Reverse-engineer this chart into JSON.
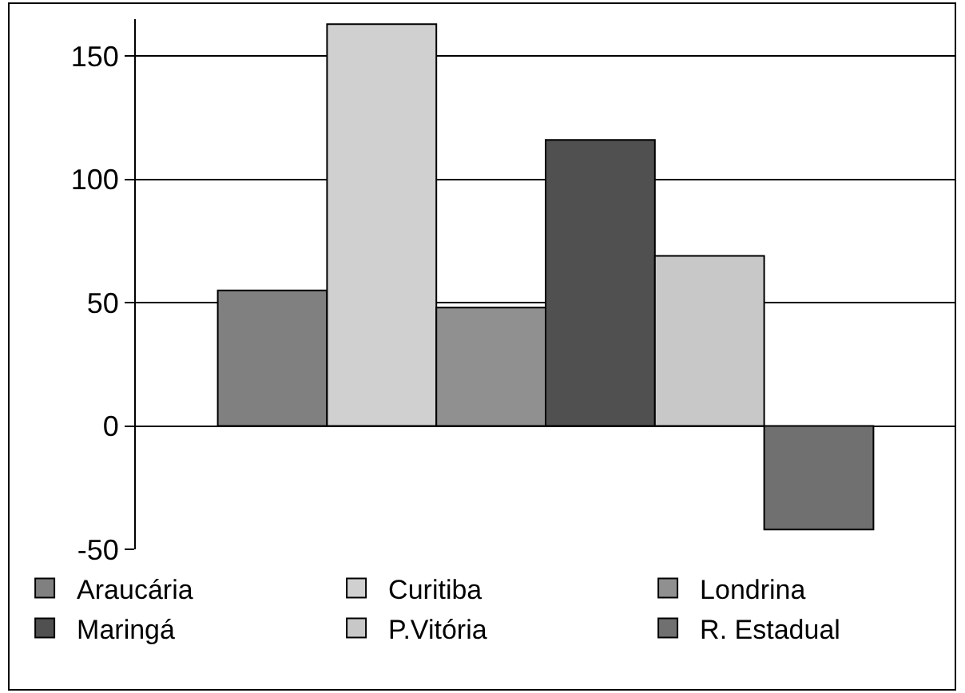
{
  "chart_data": {
    "type": "bar",
    "categories": [
      null
    ],
    "series": [
      {
        "name": "Araucária",
        "color": "#808080",
        "values": [
          55
        ]
      },
      {
        "name": "Curitiba",
        "color": "#d0d0d0",
        "values": [
          163
        ]
      },
      {
        "name": "Londrina",
        "color": "#909090",
        "values": [
          48
        ]
      },
      {
        "name": "Maringá",
        "color": "#505050",
        "values": [
          116
        ]
      },
      {
        "name": "P.Vitória",
        "color": "#c8c8c8",
        "values": [
          69
        ]
      },
      {
        "name": "R. Estadual",
        "color": "#707070",
        "values": [
          -42
        ]
      }
    ],
    "ylim": [
      -50,
      165
    ],
    "yticks": [
      -50,
      0,
      50,
      100,
      150
    ],
    "grid": "y",
    "legend": "bottom"
  }
}
